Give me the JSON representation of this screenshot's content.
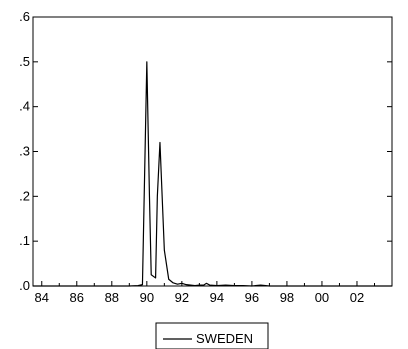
{
  "chart_data": {
    "type": "line",
    "title": "",
    "xlabel": "",
    "ylabel": "",
    "xlim": [
      1983.5,
      2004.0
    ],
    "ylim": [
      0.0,
      0.6
    ],
    "grid": false,
    "legend_position": "bottom-center",
    "x_ticks": [
      {
        "value": 1984,
        "label": "84"
      },
      {
        "value": 1986,
        "label": "86"
      },
      {
        "value": 1988,
        "label": "88"
      },
      {
        "value": 1990,
        "label": "90"
      },
      {
        "value": 1992,
        "label": "92"
      },
      {
        "value": 1994,
        "label": "94"
      },
      {
        "value": 1996,
        "label": "96"
      },
      {
        "value": 1998,
        "label": "98"
      },
      {
        "value": 2000,
        "label": "00"
      },
      {
        "value": 2002,
        "label": "02"
      }
    ],
    "y_ticks": [
      {
        "value": 0.0,
        "label": ".0"
      },
      {
        "value": 0.1,
        "label": ".1"
      },
      {
        "value": 0.2,
        "label": ".2"
      },
      {
        "value": 0.3,
        "label": ".3"
      },
      {
        "value": 0.4,
        "label": ".4"
      },
      {
        "value": 0.5,
        "label": ".5"
      },
      {
        "value": 0.6,
        "label": ".6"
      }
    ],
    "series": [
      {
        "name": "SWEDEN",
        "color": "#000000",
        "x": [
          1983.5,
          1989.0,
          1989.5,
          1989.75,
          1990.0,
          1990.15,
          1990.25,
          1990.5,
          1990.6,
          1990.75,
          1991.0,
          1991.25,
          1991.5,
          1991.75,
          1992.0,
          1992.25,
          1992.5,
          1992.75,
          1993.0,
          1993.25,
          1993.4,
          1993.6,
          1994.0,
          1994.5,
          1995.0,
          1995.5,
          1996.0,
          1996.5,
          1997.0,
          2004.0
        ],
        "y": [
          0.0,
          0.0,
          0.001,
          0.003,
          0.5,
          0.2,
          0.025,
          0.018,
          0.2,
          0.32,
          0.08,
          0.015,
          0.007,
          0.004,
          0.006,
          0.003,
          0.002,
          0.001,
          0.002,
          0.002,
          0.006,
          0.002,
          0.001,
          0.002,
          0.001,
          0.001,
          0.0,
          0.002,
          0.0,
          0.0
        ]
      }
    ]
  }
}
